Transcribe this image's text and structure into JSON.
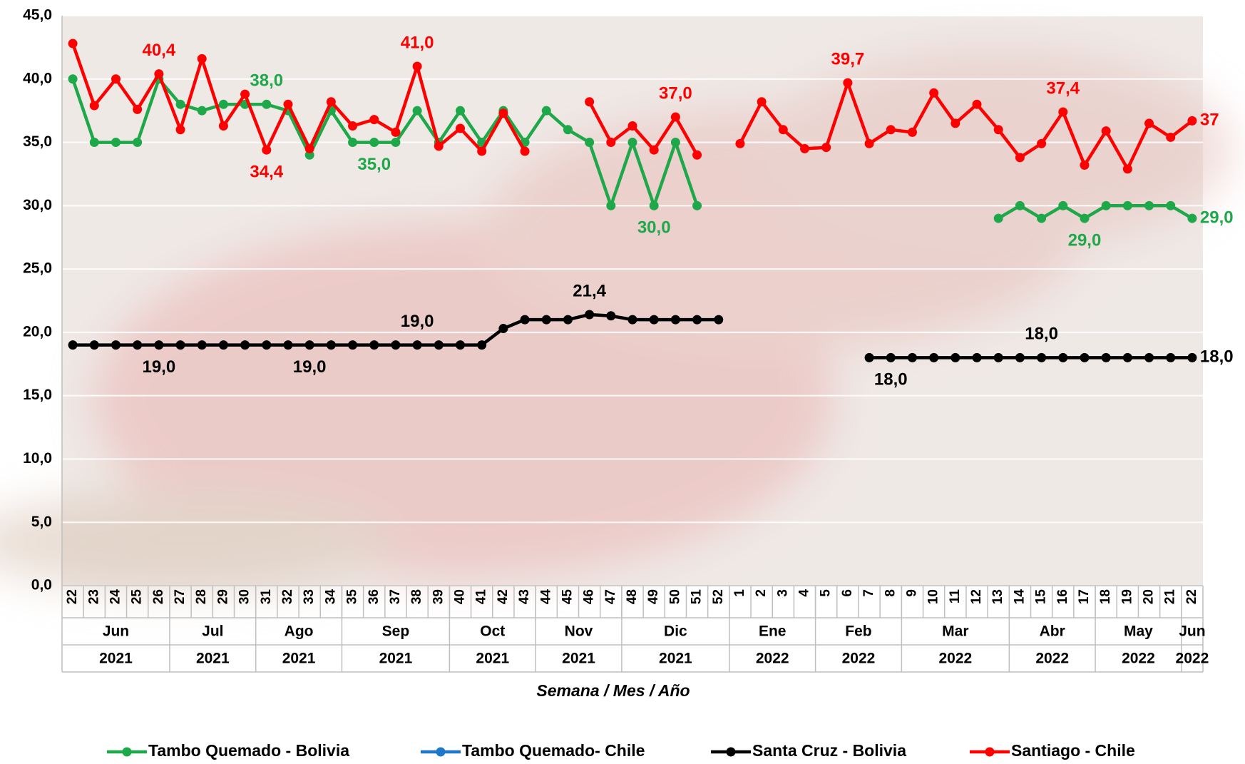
{
  "chart_data": {
    "type": "line",
    "categories": [
      "22",
      "23",
      "24",
      "25",
      "26",
      "27",
      "28",
      "29",
      "30",
      "31",
      "32",
      "33",
      "34",
      "35",
      "36",
      "37",
      "38",
      "39",
      "40",
      "41",
      "42",
      "43",
      "44",
      "45",
      "46",
      "47",
      "48",
      "49",
      "50",
      "51",
      "52",
      "1",
      "2",
      "3",
      "4",
      "5",
      "6",
      "7",
      "8",
      "9",
      "10",
      "11",
      "12",
      "13",
      "14",
      "15",
      "16",
      "17",
      "18",
      "19",
      "20",
      "21",
      "22"
    ],
    "months": [
      "Jun",
      null,
      null,
      null,
      null,
      "Jul",
      null,
      null,
      null,
      "Ago",
      null,
      null,
      null,
      "Sep",
      null,
      null,
      null,
      null,
      "Oct",
      null,
      null,
      null,
      "Nov",
      null,
      null,
      null,
      "Dic",
      null,
      null,
      null,
      null,
      "Ene",
      null,
      null,
      null,
      "Feb",
      null,
      null,
      null,
      "Mar",
      null,
      null,
      null,
      null,
      "Abr",
      null,
      null,
      null,
      "May",
      null,
      null,
      null,
      "Jun"
    ],
    "years": [
      "2021",
      null,
      null,
      null,
      null,
      "2021",
      null,
      null,
      null,
      "2021",
      null,
      null,
      null,
      "2021",
      null,
      null,
      null,
      null,
      "2021",
      null,
      null,
      null,
      "2021",
      null,
      null,
      null,
      "2021",
      null,
      null,
      null,
      null,
      "2022",
      null,
      null,
      null,
      "2022",
      null,
      null,
      null,
      "2022",
      null,
      null,
      null,
      null,
      "2022",
      null,
      null,
      null,
      "2022",
      null,
      null,
      null,
      "2022"
    ],
    "x_label": "Semana / Mes / Año",
    "ylim": [
      0,
      45
    ],
    "yticks": [
      {
        "value": 0,
        "label": "0,0"
      },
      {
        "value": 5,
        "label": "5,0"
      },
      {
        "value": 10,
        "label": "10,0"
      },
      {
        "value": 15,
        "label": "15,0"
      },
      {
        "value": 20,
        "label": "20,0"
      },
      {
        "value": 25,
        "label": "25,0"
      },
      {
        "value": 30,
        "label": "30,0"
      },
      {
        "value": 35,
        "label": "35,0"
      },
      {
        "value": 40,
        "label": "40,0"
      },
      {
        "value": 45,
        "label": "45,0"
      }
    ],
    "grid": true,
    "legend": "bottom",
    "series": [
      {
        "name": "Tambo Quemado - Bolivia",
        "color": "#1fa84a",
        "values": [
          40,
          35,
          35,
          35,
          40,
          38,
          37.5,
          38,
          38,
          38,
          37.5,
          34,
          37.5,
          35,
          35,
          35,
          37.5,
          35,
          37.5,
          35,
          37.5,
          35,
          37.5,
          36,
          35,
          30,
          35,
          30,
          35,
          30,
          null,
          null,
          null,
          null,
          null,
          null,
          null,
          null,
          null,
          null,
          null,
          null,
          null,
          29,
          30,
          29,
          30,
          29,
          30,
          30,
          30,
          30,
          29
        ],
        "value_labels": [
          null,
          null,
          null,
          null,
          null,
          null,
          null,
          null,
          null,
          "38,0",
          null,
          null,
          null,
          null,
          "35,0",
          null,
          null,
          null,
          null,
          null,
          null,
          null,
          null,
          null,
          null,
          null,
          null,
          "30,0",
          null,
          null,
          null,
          null,
          null,
          null,
          null,
          null,
          null,
          null,
          null,
          null,
          null,
          null,
          null,
          null,
          null,
          null,
          null,
          "29,0",
          null,
          null,
          null,
          null,
          "29,0"
        ]
      },
      {
        "name": "Tambo Quemado- Chile",
        "color": "#1f77c8",
        "values": [
          null,
          null,
          null,
          null,
          null,
          null,
          null,
          null,
          null,
          null,
          null,
          null,
          null,
          null,
          null,
          null,
          null,
          null,
          null,
          null,
          null,
          null,
          null,
          null,
          null,
          null,
          null,
          null,
          null,
          null,
          null,
          null,
          null,
          null,
          null,
          null,
          null,
          null,
          null,
          null,
          null,
          null,
          null,
          null,
          null,
          null,
          null,
          null,
          null,
          null,
          null,
          null,
          null
        ]
      },
      {
        "name": "Santa Cruz - Bolivia",
        "color": "#000000",
        "values": [
          19,
          19,
          19,
          19,
          19,
          19,
          19,
          19,
          19,
          19,
          19,
          19,
          19,
          19,
          19,
          19,
          19,
          19,
          19,
          19,
          20.3,
          21,
          21,
          21,
          21.4,
          21.3,
          21,
          21,
          21,
          21,
          21,
          null,
          null,
          null,
          null,
          null,
          null,
          18,
          18,
          18,
          18,
          18,
          18,
          18,
          18,
          18,
          18,
          18,
          18,
          18,
          18,
          18,
          18
        ],
        "value_labels": [
          null,
          null,
          null,
          null,
          "19,0",
          null,
          null,
          null,
          null,
          null,
          null,
          "19,0",
          null,
          null,
          null,
          null,
          "19,0",
          null,
          null,
          null,
          null,
          null,
          null,
          null,
          "21,4",
          null,
          null,
          null,
          null,
          null,
          null,
          null,
          null,
          null,
          null,
          null,
          null,
          null,
          "18,0",
          null,
          null,
          null,
          null,
          null,
          null,
          "18,0",
          null,
          null,
          null,
          null,
          null,
          null,
          "18,0"
        ]
      },
      {
        "name": "Santiago - Chile",
        "color": "#ff0000",
        "values": [
          42.8,
          37.9,
          40,
          37.6,
          40.4,
          36,
          41.6,
          36.3,
          38.8,
          34.4,
          38,
          34.5,
          38.2,
          36.3,
          36.8,
          35.8,
          41,
          34.7,
          36.1,
          34.3,
          37.3,
          34.3,
          null,
          null,
          38.2,
          35,
          36.3,
          34.4,
          37,
          34,
          null,
          34.9,
          38.2,
          36,
          34.5,
          34.6,
          39.7,
          34.9,
          36,
          35.8,
          38.9,
          36.5,
          38,
          36,
          33.8,
          34.9,
          37.4,
          33.2,
          35.9,
          32.9,
          36.5,
          35.4,
          36.7
        ],
        "value_labels": [
          null,
          null,
          null,
          null,
          "40,4",
          null,
          null,
          null,
          null,
          "34,4",
          null,
          null,
          null,
          null,
          null,
          null,
          "41,0",
          null,
          null,
          null,
          null,
          null,
          null,
          null,
          null,
          null,
          null,
          null,
          "37,0",
          null,
          null,
          null,
          null,
          null,
          null,
          null,
          "39,7",
          null,
          null,
          null,
          null,
          null,
          null,
          null,
          null,
          null,
          "37,4",
          null,
          null,
          null,
          null,
          null,
          "37"
        ]
      }
    ]
  }
}
